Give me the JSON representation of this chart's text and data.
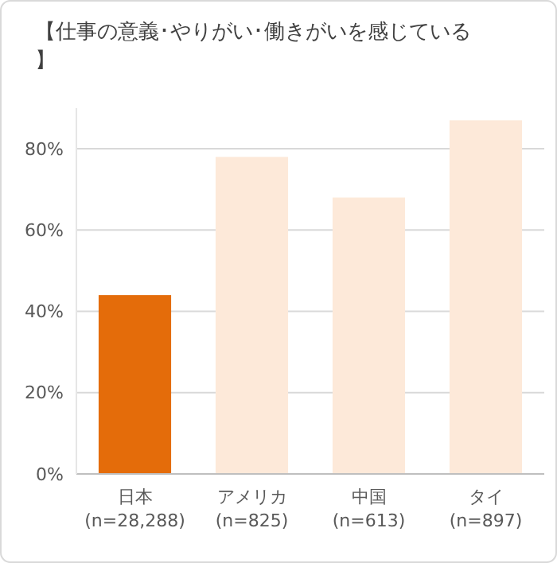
{
  "chart_data": {
    "type": "bar",
    "title": "【仕事の意義･やりがい･働きがいを感じている】",
    "categories": [
      "日本\n(n=28,288)",
      "アメリカ\n(n=825)",
      "中国\n(n=613)",
      "タイ\n(n=897)"
    ],
    "values": [
      44,
      78,
      68,
      87
    ],
    "colors": [
      "#e46c0a",
      "#fde9d9",
      "#fde9d9",
      "#fde9d9"
    ],
    "ylim": [
      0,
      90
    ],
    "yticks": [
      {
        "value": 0,
        "label": "0%"
      },
      {
        "value": 20,
        "label": "20%"
      },
      {
        "value": 40,
        "label": "40%"
      },
      {
        "value": 60,
        "label": "60%"
      },
      {
        "value": 80,
        "label": "80%"
      }
    ],
    "grid": "y"
  }
}
